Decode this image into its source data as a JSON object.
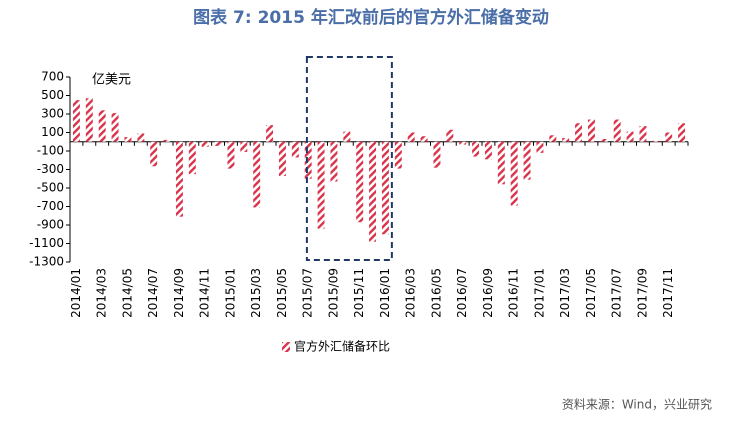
{
  "chart_data": {
    "type": "bar",
    "title": "图表 7:  2015 年汇改前后的官方外汇储备变动",
    "unit_label": "亿美元",
    "source": "资料来源：Wind，兴业研究",
    "categories": [
      "2014/01",
      null,
      "2014/03",
      null,
      "2014/05",
      null,
      "2014/07",
      null,
      "2014/09",
      null,
      "2014/11",
      null,
      "2015/01",
      null,
      "2015/03",
      null,
      "2015/05",
      null,
      "2015/07",
      null,
      "2015/09",
      null,
      "2015/11",
      null,
      "2016/01",
      null,
      "2016/03",
      null,
      "2016/05",
      null,
      "2016/07",
      null,
      "2016/09",
      null,
      "2016/11",
      null,
      "2017/01",
      null,
      "2017/03",
      null,
      "2017/05",
      null,
      "2017/07",
      null,
      "2017/09",
      null,
      "2017/11",
      null
    ],
    "series": [
      {
        "name": "官方外汇储备环比",
        "color": "#d9334a",
        "values": [
          450,
          470,
          340,
          310,
          50,
          90,
          -265,
          20,
          -810,
          -350,
          -55,
          -45,
          -290,
          -110,
          -710,
          180,
          -370,
          -170,
          -400,
          -940,
          -430,
          110,
          -870,
          -1080,
          -1000,
          -290,
          100,
          60,
          -280,
          130,
          -30,
          -160,
          -190,
          -460,
          -690,
          -410,
          -120,
          70,
          40,
          200,
          240,
          30,
          240,
          110,
          170,
          10,
          100,
          200
        ]
      }
    ],
    "ylim": [
      -1300,
      700
    ],
    "yticks": [
      -1300,
      -1100,
      -900,
      -700,
      -500,
      -300,
      -100,
      100,
      300,
      500,
      700
    ],
    "grid": false
  }
}
